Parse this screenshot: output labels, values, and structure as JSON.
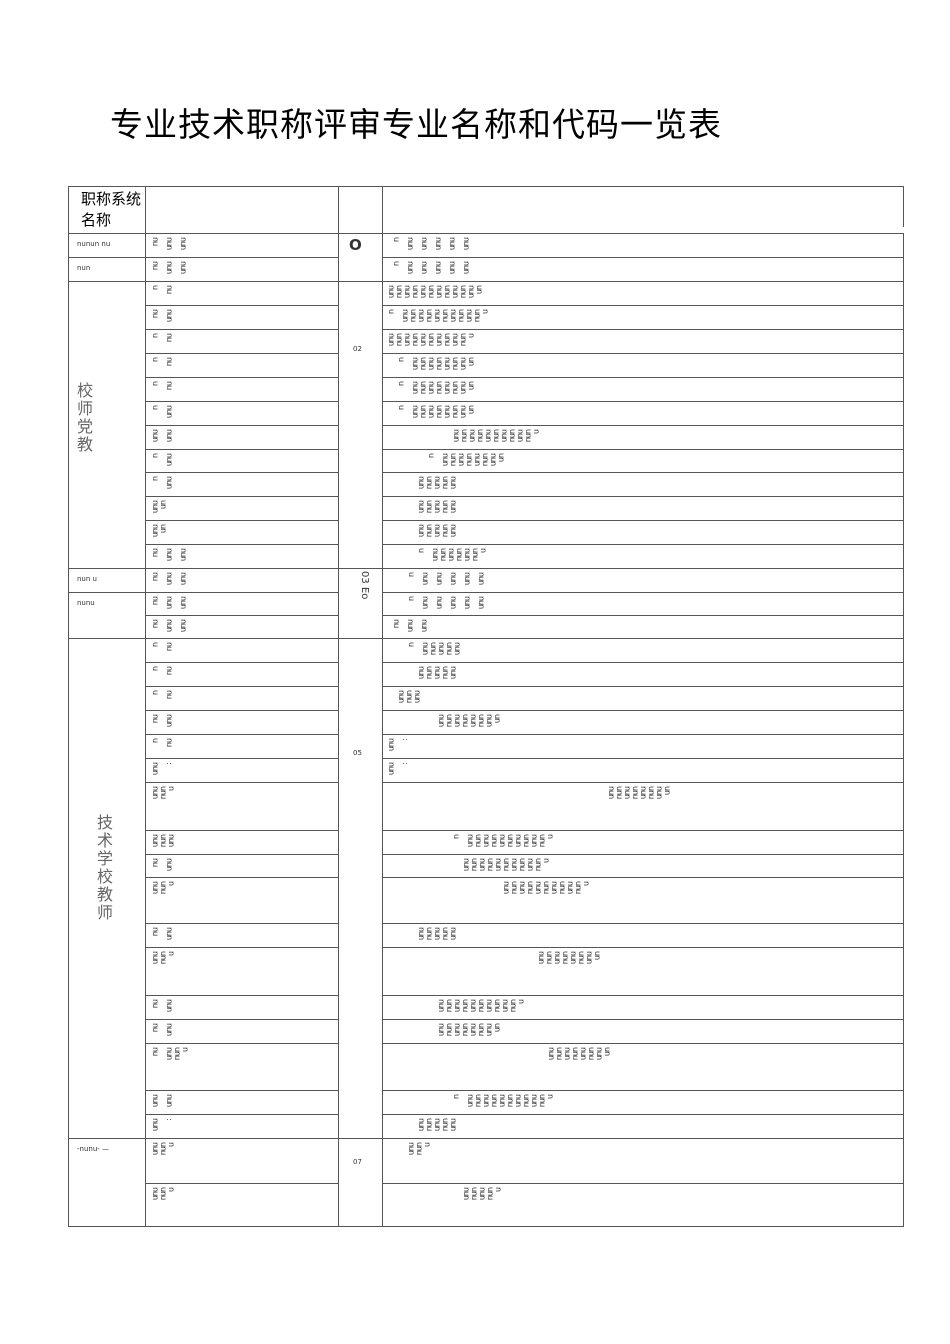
{
  "title": "专业技术职称评审专业名称和代码一览表",
  "header": {
    "col1": "职称系统名称",
    "col2": "",
    "col3": "",
    "col4": ""
  },
  "groups_col1": [
    {
      "label": "nunun nu"
    },
    {
      "label": "nun"
    },
    {
      "label": "校师党教"
    },
    {
      "label": "nun u"
    },
    {
      "label": "nunu"
    },
    {
      "label": "技术学校教师"
    },
    {
      "label": "-nunu- —"
    }
  ],
  "groups_col3": [
    {
      "label": "O"
    },
    {
      "label": "02"
    },
    {
      "label": "03 Eo"
    },
    {
      "label": "05"
    },
    {
      "label": "07"
    }
  ],
  "rows": [
    {
      "c2": "nu nun nun",
      "c4": "u nun nun nun nun nun"
    },
    {
      "c2": "nu nun nun",
      "c4": "u nun nun nun nun nun"
    },
    {
      "c2": "u nu",
      "c4": "nununununununununununununununununun"
    },
    {
      "c2": "nu nun",
      "c4": "u nununununununununununununununun"
    },
    {
      "c2": "u nu",
      "c4": "nununununununununununununununun"
    },
    {
      "c2": "u nu",
      "c4": "u nununununununununununun"
    },
    {
      "c2": "u nu",
      "c4": "u nununununununununununun"
    },
    {
      "c2": "u nun",
      "c4": "u nununununununununununun"
    },
    {
      "c2": "nun nun",
      "c4": "nununununununununununununununun"
    },
    {
      "c2": "u nun",
      "c4": "u nununununununununununun"
    },
    {
      "c2": "u nun",
      "c4": "nununununununun"
    },
    {
      "c2": "nunun",
      "c4": "nununununununun"
    },
    {
      "c2": "nunun",
      "c4": "nununununununun"
    },
    {
      "c2": "nu nun nun",
      "c4": "u nununununununununun"
    },
    {
      "c2": "nu nun nun",
      "c4": "u nun nun nun nun nun"
    },
    {
      "c2": "nu nun nun",
      "c4": "u nun nun nun nun nun"
    },
    {
      "c2": "nu nun nun",
      "c4": "nu nun nun"
    },
    {
      "c2": "u nu",
      "c4": "u nununununununun"
    },
    {
      "c2": "u nu",
      "c4": "nununununununun"
    },
    {
      "c2": "u nu",
      "c4": "nunununun"
    },
    {
      "c2": "nu nun",
      "c4": "nununununununununununun"
    },
    {
      "c2": "u nu",
      "c4": "nun :"
    },
    {
      "c2": "nun :",
      "c4": "nun :"
    },
    {
      "c2": "nununun",
      "c4": "nununununununununununun"
    },
    {
      "c2": "nunununun",
      "c4": "u nununununununununununununununun"
    },
    {
      "c2": "nu nun",
      "c4": "nununununununununununununununun"
    },
    {
      "c2": "nununun",
      "c4": "nununununununununununununununun"
    },
    {
      "c2": "nu nun",
      "c4": "nununununununun"
    },
    {
      "c2": "nununun",
      "c4": "nununununununununununun"
    },
    {
      "c2": "nu nun",
      "c4": "nununununununununununununununun"
    },
    {
      "c2": "nu nun",
      "c4": "nununununununununununun"
    },
    {
      "c2": "nu nununun",
      "c4": "nununununununununununun"
    },
    {
      "c2": "nun nun",
      "c4": "u nununununununununununununununun"
    },
    {
      "c2": "nun :",
      "c4": "nununununununun"
    },
    {
      "c2": "nununun",
      "c4": "nununun"
    },
    {
      "c2": "nununun",
      "c4": "nunununununun"
    }
  ]
}
